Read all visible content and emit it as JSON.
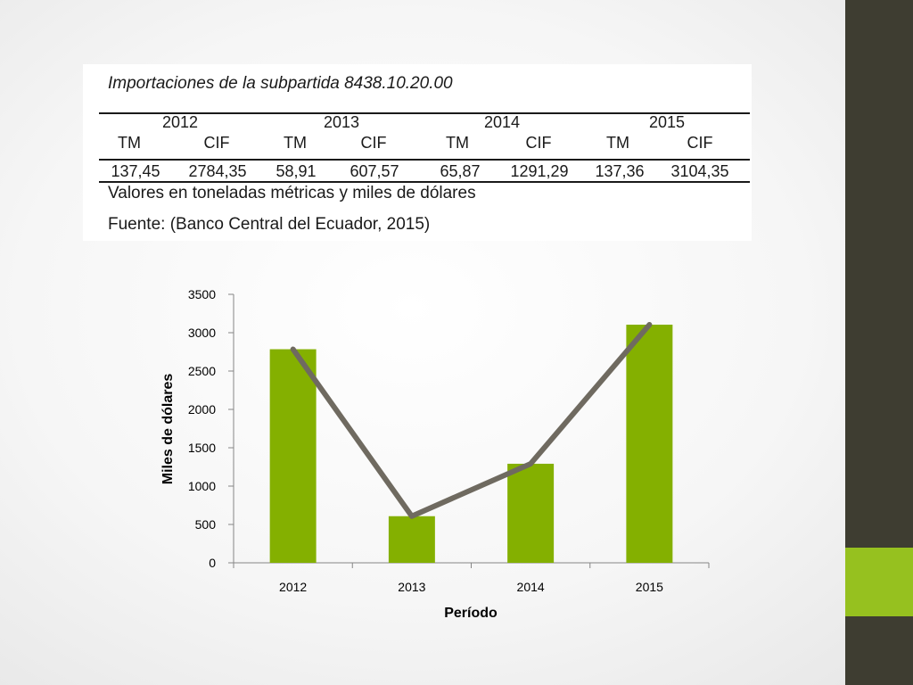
{
  "table": {
    "title": "Importaciones de la subpartida 8438.10.20.00",
    "years": [
      "2012",
      "2013",
      "2014",
      "2015"
    ],
    "subheaders": [
      "TM",
      "CIF",
      "TM",
      "CIF",
      "TM",
      "CIF",
      "TM",
      "CIF"
    ],
    "values": [
      "137,45",
      "2784,35",
      "58,91",
      "607,57",
      "65,87",
      "1291,29",
      "137,36",
      "3104,35"
    ],
    "note": "Valores en toneladas métricas y miles de dólares",
    "source": "Fuente: (Banco Central del Ecuador, 2015)"
  },
  "chart_data": {
    "type": "bar",
    "categories": [
      "2012",
      "2013",
      "2014",
      "2015"
    ],
    "series": [
      {
        "type": "bar",
        "values": [
          2784.35,
          607.57,
          1291.29,
          3104.35
        ],
        "color": "#84b000"
      },
      {
        "type": "line",
        "values": [
          2784.35,
          607.57,
          1291.29,
          3104.35
        ],
        "color": "#6f6a60"
      }
    ],
    "xlabel": "Período",
    "ylabel": "Miles de dólares",
    "ylim": [
      0,
      3500
    ],
    "yticks": [
      "0",
      "500",
      "1000",
      "1500",
      "2000",
      "2500",
      "3000",
      "3500"
    ],
    "grid": false,
    "legend": "none"
  },
  "theme": {
    "sidebar_color": "#3e3d31",
    "accent_color": "#96c11f"
  }
}
